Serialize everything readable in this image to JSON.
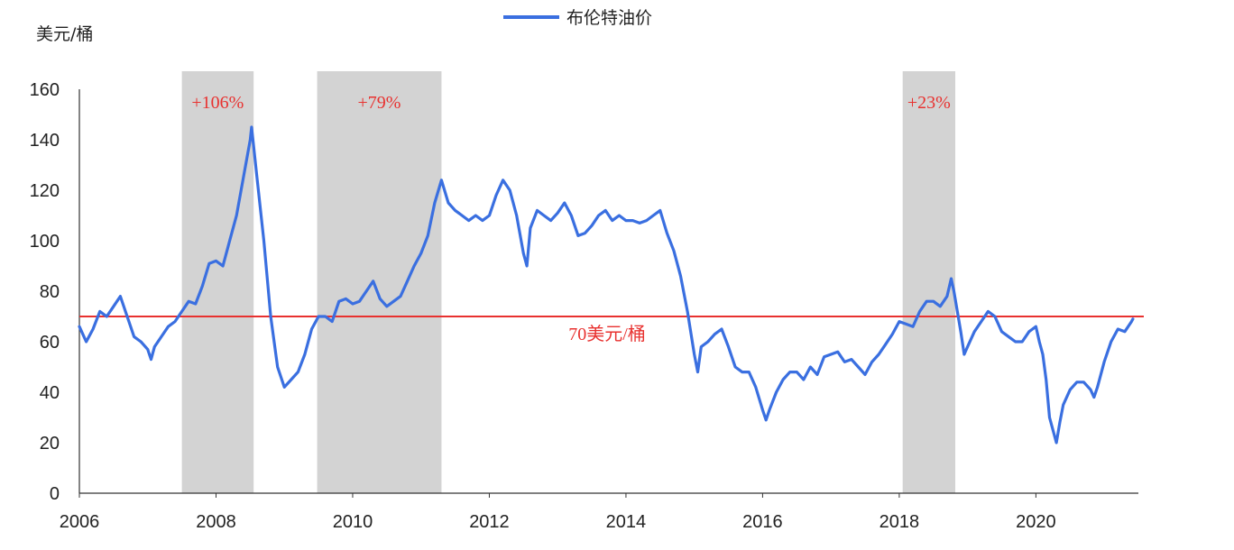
{
  "chart_data": {
    "type": "line",
    "title": "",
    "ylabel": "美元/桶",
    "xlabel": "",
    "legend": {
      "position": "top-center",
      "entries": [
        "布伦特油价"
      ]
    },
    "xlim": [
      2006,
      2021.5
    ],
    "ylim": [
      0,
      160
    ],
    "x_ticks": [
      2006,
      2008,
      2010,
      2012,
      2014,
      2016,
      2018,
      2020
    ],
    "y_ticks": [
      0,
      20,
      40,
      60,
      80,
      100,
      120,
      140,
      160
    ],
    "grid": false,
    "series": [
      {
        "name": "布伦特油价",
        "color": "#3a6fe0",
        "points": [
          [
            2006.0,
            66
          ],
          [
            2006.1,
            60
          ],
          [
            2006.2,
            65
          ],
          [
            2006.3,
            72
          ],
          [
            2006.4,
            70
          ],
          [
            2006.5,
            74
          ],
          [
            2006.6,
            78
          ],
          [
            2006.7,
            70
          ],
          [
            2006.8,
            62
          ],
          [
            2006.9,
            60
          ],
          [
            2007.0,
            57
          ],
          [
            2007.05,
            53
          ],
          [
            2007.1,
            58
          ],
          [
            2007.2,
            62
          ],
          [
            2007.3,
            66
          ],
          [
            2007.4,
            68
          ],
          [
            2007.5,
            72
          ],
          [
            2007.6,
            76
          ],
          [
            2007.7,
            75
          ],
          [
            2007.8,
            82
          ],
          [
            2007.9,
            91
          ],
          [
            2008.0,
            92
          ],
          [
            2008.1,
            90
          ],
          [
            2008.2,
            100
          ],
          [
            2008.3,
            110
          ],
          [
            2008.4,
            125
          ],
          [
            2008.5,
            140
          ],
          [
            2008.52,
            145
          ],
          [
            2008.6,
            125
          ],
          [
            2008.7,
            100
          ],
          [
            2008.8,
            70
          ],
          [
            2008.9,
            50
          ],
          [
            2009.0,
            42
          ],
          [
            2009.1,
            45
          ],
          [
            2009.2,
            48
          ],
          [
            2009.3,
            55
          ],
          [
            2009.4,
            65
          ],
          [
            2009.5,
            70
          ],
          [
            2009.6,
            70
          ],
          [
            2009.7,
            68
          ],
          [
            2009.8,
            76
          ],
          [
            2009.9,
            77
          ],
          [
            2010.0,
            75
          ],
          [
            2010.1,
            76
          ],
          [
            2010.2,
            80
          ],
          [
            2010.3,
            84
          ],
          [
            2010.4,
            77
          ],
          [
            2010.5,
            74
          ],
          [
            2010.6,
            76
          ],
          [
            2010.7,
            78
          ],
          [
            2010.8,
            84
          ],
          [
            2010.9,
            90
          ],
          [
            2011.0,
            95
          ],
          [
            2011.1,
            102
          ],
          [
            2011.2,
            115
          ],
          [
            2011.3,
            124
          ],
          [
            2011.4,
            115
          ],
          [
            2011.5,
            112
          ],
          [
            2011.6,
            110
          ],
          [
            2011.7,
            108
          ],
          [
            2011.8,
            110
          ],
          [
            2011.9,
            108
          ],
          [
            2012.0,
            110
          ],
          [
            2012.1,
            118
          ],
          [
            2012.2,
            124
          ],
          [
            2012.3,
            120
          ],
          [
            2012.4,
            110
          ],
          [
            2012.5,
            95
          ],
          [
            2012.55,
            90
          ],
          [
            2012.6,
            105
          ],
          [
            2012.7,
            112
          ],
          [
            2012.8,
            110
          ],
          [
            2012.9,
            108
          ],
          [
            2013.0,
            111
          ],
          [
            2013.1,
            115
          ],
          [
            2013.2,
            110
          ],
          [
            2013.3,
            102
          ],
          [
            2013.4,
            103
          ],
          [
            2013.5,
            106
          ],
          [
            2013.6,
            110
          ],
          [
            2013.7,
            112
          ],
          [
            2013.8,
            108
          ],
          [
            2013.9,
            110
          ],
          [
            2014.0,
            108
          ],
          [
            2014.1,
            108
          ],
          [
            2014.2,
            107
          ],
          [
            2014.3,
            108
          ],
          [
            2014.4,
            110
          ],
          [
            2014.5,
            112
          ],
          [
            2014.6,
            103
          ],
          [
            2014.7,
            96
          ],
          [
            2014.8,
            86
          ],
          [
            2014.9,
            72
          ],
          [
            2015.0,
            55
          ],
          [
            2015.05,
            48
          ],
          [
            2015.1,
            58
          ],
          [
            2015.2,
            60
          ],
          [
            2015.3,
            63
          ],
          [
            2015.4,
            65
          ],
          [
            2015.5,
            58
          ],
          [
            2015.6,
            50
          ],
          [
            2015.7,
            48
          ],
          [
            2015.8,
            48
          ],
          [
            2015.9,
            42
          ],
          [
            2016.0,
            33
          ],
          [
            2016.05,
            29
          ],
          [
            2016.1,
            33
          ],
          [
            2016.2,
            40
          ],
          [
            2016.3,
            45
          ],
          [
            2016.4,
            48
          ],
          [
            2016.5,
            48
          ],
          [
            2016.6,
            45
          ],
          [
            2016.7,
            50
          ],
          [
            2016.8,
            47
          ],
          [
            2016.9,
            54
          ],
          [
            2017.0,
            55
          ],
          [
            2017.1,
            56
          ],
          [
            2017.2,
            52
          ],
          [
            2017.3,
            53
          ],
          [
            2017.4,
            50
          ],
          [
            2017.5,
            47
          ],
          [
            2017.6,
            52
          ],
          [
            2017.7,
            55
          ],
          [
            2017.8,
            59
          ],
          [
            2017.9,
            63
          ],
          [
            2018.0,
            68
          ],
          [
            2018.1,
            67
          ],
          [
            2018.2,
            66
          ],
          [
            2018.3,
            72
          ],
          [
            2018.4,
            76
          ],
          [
            2018.5,
            76
          ],
          [
            2018.6,
            74
          ],
          [
            2018.7,
            78
          ],
          [
            2018.76,
            85
          ],
          [
            2018.8,
            80
          ],
          [
            2018.9,
            64
          ],
          [
            2018.95,
            55
          ],
          [
            2019.0,
            58
          ],
          [
            2019.1,
            64
          ],
          [
            2019.2,
            68
          ],
          [
            2019.3,
            72
          ],
          [
            2019.4,
            70
          ],
          [
            2019.5,
            64
          ],
          [
            2019.6,
            62
          ],
          [
            2019.7,
            60
          ],
          [
            2019.8,
            60
          ],
          [
            2019.9,
            64
          ],
          [
            2020.0,
            66
          ],
          [
            2020.05,
            60
          ],
          [
            2020.1,
            55
          ],
          [
            2020.15,
            45
          ],
          [
            2020.2,
            30
          ],
          [
            2020.25,
            25
          ],
          [
            2020.3,
            20
          ],
          [
            2020.35,
            28
          ],
          [
            2020.4,
            35
          ],
          [
            2020.5,
            41
          ],
          [
            2020.6,
            44
          ],
          [
            2020.7,
            44
          ],
          [
            2020.8,
            41
          ],
          [
            2020.85,
            38
          ],
          [
            2020.9,
            42
          ],
          [
            2021.0,
            52
          ],
          [
            2021.1,
            60
          ],
          [
            2021.2,
            65
          ],
          [
            2021.3,
            64
          ],
          [
            2021.4,
            68
          ],
          [
            2021.42,
            69
          ]
        ]
      }
    ],
    "shaded_periods": [
      {
        "start": 2007.5,
        "end": 2008.55,
        "label": "+106%"
      },
      {
        "start": 2009.48,
        "end": 2011.3,
        "label": "+79%"
      },
      {
        "start": 2018.05,
        "end": 2018.82,
        "label": "+23%"
      }
    ],
    "reference_line": {
      "y": 70,
      "label": "70美元/桶",
      "color": "#e8312f"
    }
  }
}
